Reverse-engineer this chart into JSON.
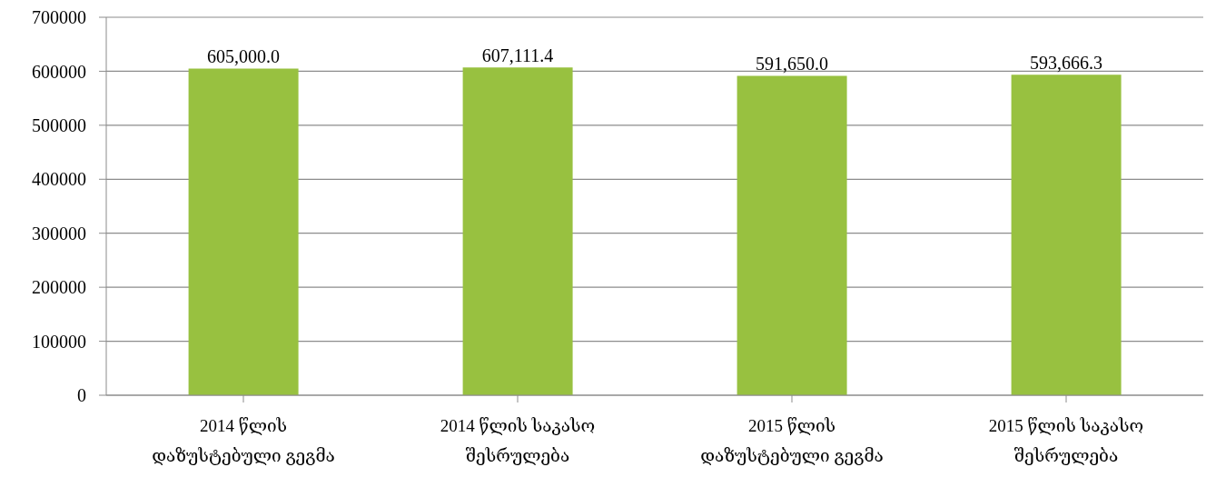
{
  "chart_data": {
    "type": "bar",
    "categories": [
      "2014 წლის დაზუსტებული გეგმა",
      "2014 წლის საკასო შესრულება",
      "2015 წლის დაზუსტებული გეგმა",
      "2015 წლის საკასო შესრულება"
    ],
    "values": [
      605000.0,
      607111.4,
      591650.0,
      593666.3
    ],
    "value_labels": [
      "605,000.0",
      "607,111.4",
      "591,650.0",
      "593,666.3"
    ],
    "color": "#98c140",
    "ylim": [
      0,
      700000
    ],
    "yticks": [
      0,
      100000,
      200000,
      300000,
      400000,
      500000,
      600000,
      700000
    ],
    "grid": "y"
  }
}
